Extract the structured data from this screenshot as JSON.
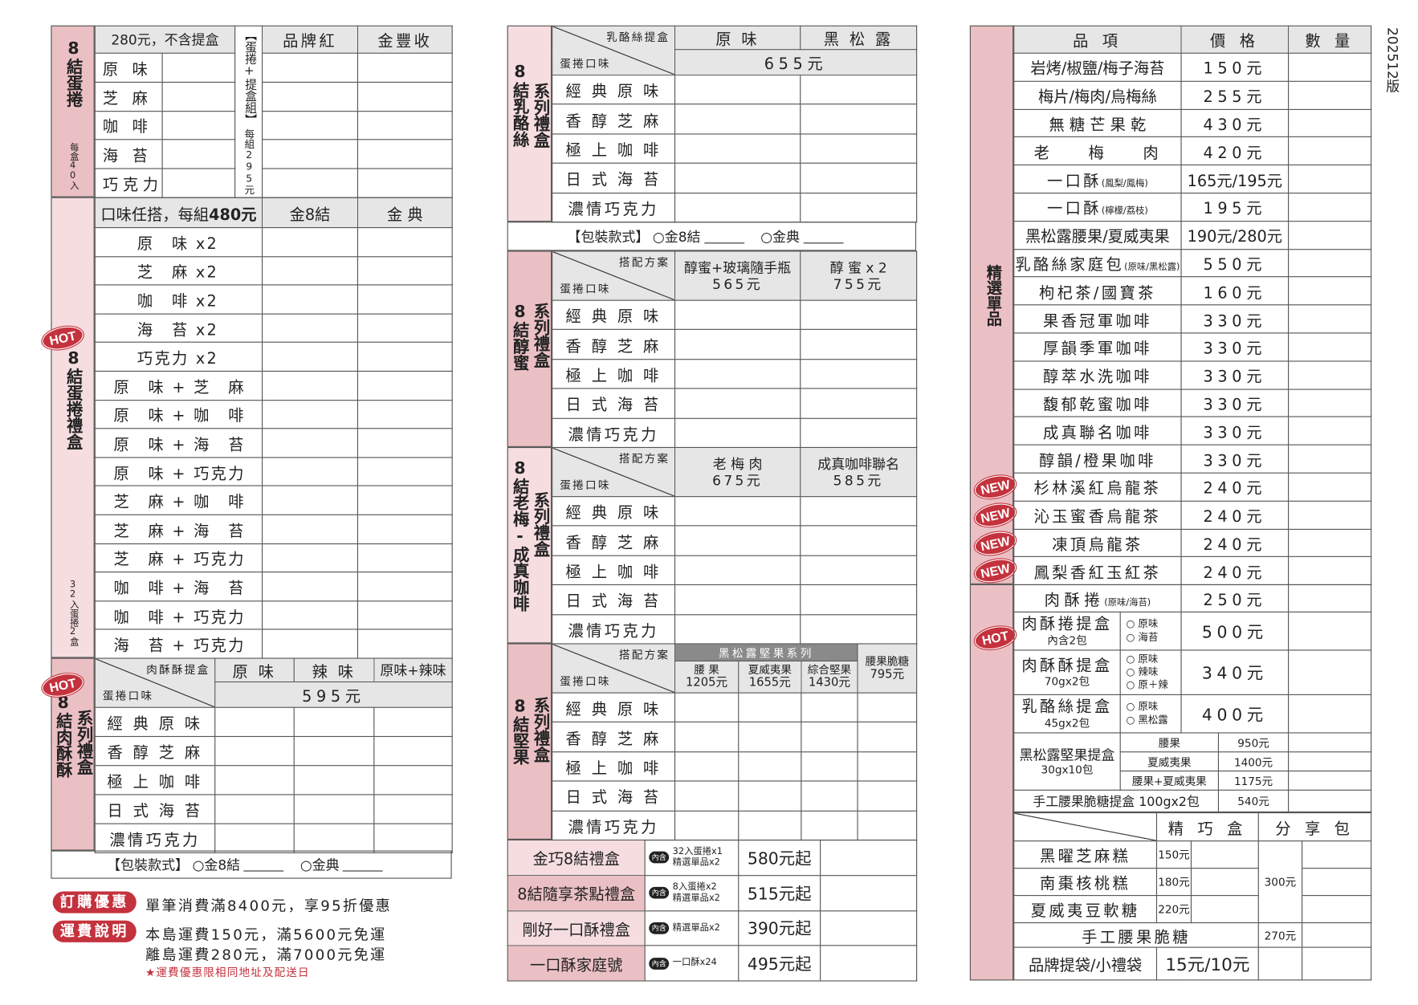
{
  "version": "202512版",
  "series_flavors": [
    "經 典 原 味",
    "香 醇 芝 麻",
    "極 上 咖 啡",
    "日 式 海 苔",
    "濃情巧克力"
  ],
  "flavor_axis_label": "蛋捲口味",
  "plan_label": "搭配方案",
  "egg_rolls": {
    "sidebar_title": "8結蛋捲",
    "sidebar_note": "每盒40入",
    "price_header": "280元，不含提盒",
    "set_label": "【蛋捲+提盒組】",
    "set_price": "每組295元",
    "columns": [
      "品牌紅",
      "金豐收"
    ],
    "flavors": [
      "原 味",
      "芝 麻",
      "咖 啡",
      "海 苔",
      "巧克力"
    ]
  },
  "gift_box": {
    "badge": "HOT",
    "sidebar_title": "8結蛋捲禮盒",
    "sidebar_note": "32入蛋捲2盒",
    "header_text": "口味任搭，每組",
    "header_price": "480元",
    "columns": [
      "金8結",
      "金 典"
    ],
    "combos": [
      "原　味 x2",
      "芝　麻 x2",
      "咖　啡 x2",
      "海　苔 x2",
      "巧克力 x2",
      "原　味 + 芝　麻",
      "原　味 + 咖　啡",
      "原　味 + 海　苔",
      "原　味 + 巧克力",
      "芝　麻 + 咖　啡",
      "芝　麻 + 海　苔",
      "芝　麻 + 巧克力",
      "咖　啡 + 海　苔",
      "咖　啡 + 巧克力",
      "海　苔 + 巧克力"
    ]
  },
  "meat_floss": {
    "badge": "HOT",
    "sidebar_title": "8結肉酥酥",
    "sidebar_sub": "系列禮盒",
    "corner_top": "肉酥酥提盒",
    "columns": [
      "原 味",
      "辣 味",
      "原味+辣味"
    ],
    "price": "595元"
  },
  "packaging": {
    "label": "【包裝款式】",
    "options": [
      "○金8結",
      "○金典"
    ]
  },
  "notes": {
    "promo_badge": "訂購優惠",
    "promo_text": "單筆消費滿8400元，享95折優惠",
    "shipping_badge": "運費說明",
    "shipping_lines": [
      "本島運費150元，滿5600元免運",
      "離島運費280元，滿7000元免運"
    ],
    "shipping_note": "★運費優惠限相同地址及配送日"
  },
  "cheese": {
    "sidebar_title": "8結乳酪絲",
    "sidebar_sub": "系列禮盒",
    "corner_top": "乳酪絲提盒",
    "columns": [
      "原 味",
      "黑 松 露"
    ],
    "price": "655元"
  },
  "honey": {
    "sidebar_title": "8結醇蜜",
    "sidebar_sub": "系列禮盒",
    "columns": [
      {
        "name": "醇蜜+玻璃隨手瓶",
        "price": "565元"
      },
      {
        "name": "醇 蜜 x 2",
        "price": "755元"
      }
    ]
  },
  "plum_coffee": {
    "sidebar_title": "8結老梅-成真咖啡",
    "sidebar_sub": "系列禮盒",
    "columns": [
      {
        "name": "老 梅 肉",
        "price": "675元"
      },
      {
        "name": "成真咖啡聯名",
        "price": "585元"
      }
    ]
  },
  "nuts": {
    "sidebar_title": "8結堅果",
    "sidebar_sub": "系列禮盒",
    "band": "黑松露堅果系列",
    "columns": [
      {
        "name": "腰 果",
        "price": "1205元"
      },
      {
        "name": "夏威夷果",
        "price": "1655元"
      },
      {
        "name": "綜合堅果",
        "price": "1430元"
      },
      {
        "name": "腰果脆糖",
        "price": "795元"
      }
    ]
  },
  "gift_sets": {
    "includes_badge": "內含",
    "items": [
      {
        "name": "金巧8結禮盒",
        "includes": [
          "32入蛋捲x1",
          "精選單品x2"
        ],
        "price": "580元起"
      },
      {
        "name": "8結隨享茶點禮盒",
        "includes": [
          "8入蛋捲x2",
          "精選單品x2"
        ],
        "price": "515元起"
      },
      {
        "name": "剛好一口酥禮盒",
        "includes": [
          "精選單品x2"
        ],
        "price": "390元起"
      },
      {
        "name": "一口酥家庭號",
        "includes": [
          "一口酥x24"
        ],
        "price": "495元起"
      }
    ]
  },
  "singles": {
    "sidebar_title": "精選單品",
    "headers": [
      "品 項",
      "價 格",
      "數 量"
    ],
    "items": [
      {
        "name": "岩烤/椒鹽/梅子海苔",
        "price": "150元"
      },
      {
        "name": "梅片/梅肉/烏梅絲",
        "price": "255元"
      },
      {
        "name": "無 糖 芒 果 乾",
        "price": "430元"
      },
      {
        "name": "老　　梅　　肉",
        "price": "420元"
      },
      {
        "name": "一口酥",
        "note": "(鳳梨/鳳梅)",
        "price": "165元/195元"
      },
      {
        "name": "一口酥",
        "note": "(檸檬/荔枝)",
        "price": "195元"
      },
      {
        "name": "黑松露腰果/夏威夷果",
        "price": "190元/280元"
      },
      {
        "name": "乳酪絲家庭包",
        "note": "(原味/黑松露)",
        "price": "550元"
      },
      {
        "name": "枸杞茶/國寶茶",
        "price": "160元"
      },
      {
        "name": "果香冠軍咖啡",
        "price": "330元"
      },
      {
        "name": "厚韻季軍咖啡",
        "price": "330元"
      },
      {
        "name": "醇萃水洗咖啡",
        "price": "330元"
      },
      {
        "name": "馥郁乾蜜咖啡",
        "price": "330元"
      },
      {
        "name": "成真聯名咖啡",
        "price": "330元"
      },
      {
        "name": "醇韻/橙果咖啡",
        "price": "330元"
      },
      {
        "name": "杉林溪紅烏龍茶",
        "price": "240元",
        "badge": "NEW"
      },
      {
        "name": "沁玉蜜香烏龍茶",
        "price": "240元",
        "badge": "NEW"
      },
      {
        "name": "凍頂烏龍茶",
        "price": "240元",
        "badge": "NEW"
      },
      {
        "name": "鳳梨香紅玉紅茶",
        "price": "240元",
        "badge": "NEW"
      }
    ]
  },
  "hot": {
    "badge": "HOT",
    "meat_roll": {
      "name": "肉酥捲",
      "note": "(原味/海苔)",
      "price": "250元"
    },
    "boxes": [
      {
        "name": "肉酥捲提盒",
        "sub": "內含2包",
        "options": [
          "○ 原味",
          "○ 海苔"
        ],
        "price": "500元"
      },
      {
        "name": "肉酥酥提盒",
        "sub": "70gx2包",
        "options": [
          "○ 原味",
          "○ 辣味",
          "○ 原＋辣"
        ],
        "price": "340元"
      },
      {
        "name": "乳酪絲提盒",
        "sub": "45gx2包",
        "options": [
          "○ 原味",
          "○ 黑松露"
        ],
        "price": "400元"
      }
    ],
    "nut_box": {
      "name": "黑松露堅果提盒",
      "sub": "30gx10包",
      "options": [
        {
          "name": "腰果",
          "price": "950元"
        },
        {
          "name": "夏威夷果",
          "price": "1400元"
        },
        {
          "name": "腰果+夏威夷果",
          "price": "1175元"
        }
      ]
    },
    "brittle_box": {
      "name": "手工腰果脆糖提盒 100gx2包",
      "price": "540元"
    }
  },
  "snacks": {
    "columns": [
      "精 巧 盒",
      "分 享 包"
    ],
    "items": [
      {
        "name": "黑曜芝麻糕",
        "price": "150元"
      },
      {
        "name": "南棗核桃糕",
        "price": "180元"
      },
      {
        "name": "夏威夷豆軟糖",
        "price": "220元"
      }
    ],
    "share_price": "300元",
    "brittle": {
      "name": "手工腰果脆糖",
      "price": "270元"
    },
    "bag": {
      "name": "品牌提袋/小禮袋",
      "price": "15元/10元"
    }
  },
  "colors": {
    "sidebar_dark": "#ebc0c4",
    "sidebar_light": "#f5dde0",
    "header_gray": "#e6e6e6",
    "badge_red": "#c4323d"
  }
}
